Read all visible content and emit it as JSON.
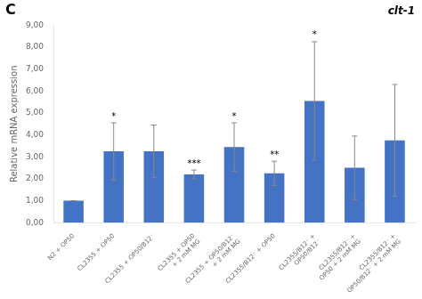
{
  "chart_data": {
    "type": "bar",
    "title": "clt-1",
    "panel_label": "C",
    "categories": [
      "N2 + OP50",
      "CL2355 + OP50",
      "CL2355 + OP50/B12⁻",
      "CL2355 + OP50\n+ 2 mM MG",
      "CL2355 + OP50/B12⁻\n+ 2 mM MG",
      "CL2355/B12⁻ + OP50",
      "CL2355/B12⁻ +\nOP50/B12⁻",
      "CL2355/B12⁻ +\nOP50 + 2 mM MG",
      "CL2355/B12⁻ +\nOP50/B12⁻ + 2 mM MG"
    ],
    "values": [
      1.0,
      3.25,
      3.25,
      2.2,
      3.45,
      2.25,
      5.55,
      2.5,
      3.75
    ],
    "errors": [
      0.0,
      1.3,
      1.2,
      0.2,
      1.1,
      0.55,
      2.7,
      1.45,
      2.55
    ],
    "significance": [
      null,
      "*",
      null,
      "***",
      "*",
      "**",
      "*",
      null,
      null
    ],
    "color": "#4472C4",
    "ylabel": "Relative mRNA expression",
    "ylim": [
      0,
      9.0
    ],
    "yticks": [
      {
        "value": 0.0,
        "label": "0,00"
      },
      {
        "value": 1.0,
        "label": "1,00"
      },
      {
        "value": 2.0,
        "label": "2,00"
      },
      {
        "value": 3.0,
        "label": "3,00"
      },
      {
        "value": 4.0,
        "label": "4,00"
      },
      {
        "value": 5.0,
        "label": "5,00"
      },
      {
        "value": 6.0,
        "label": "6,00"
      },
      {
        "value": 7.0,
        "label": "7,00"
      },
      {
        "value": 8.0,
        "label": "8,00"
      },
      {
        "value": 9.0,
        "label": "9,00"
      }
    ],
    "grid": false
  }
}
